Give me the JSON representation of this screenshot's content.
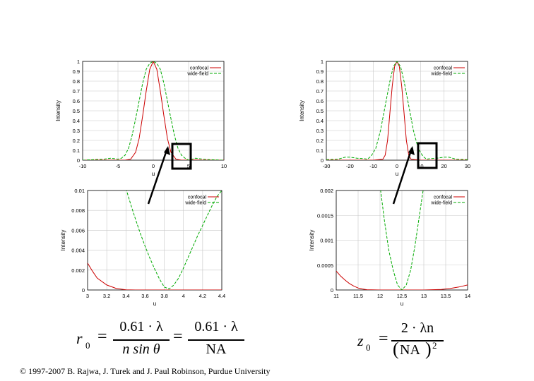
{
  "chart_data": [
    {
      "type": "line",
      "id": "tl",
      "xlabel": "u",
      "ylabel": "Intensity",
      "xlim": [
        -10,
        10
      ],
      "ylim": [
        0,
        1
      ],
      "xticks": [
        "-10",
        "-5",
        "0",
        "5",
        "10"
      ],
      "yticks": [
        "0",
        "0.1",
        "0.2",
        "0.3",
        "0.4",
        "0.5",
        "0.6",
        "0.7",
        "0.8",
        "0.9",
        "1"
      ],
      "grid": true,
      "legend": "top-right",
      "series": [
        {
          "name": "confocal",
          "color": "#cc0000",
          "dash": false,
          "x": [
            -10,
            -4,
            -3.2,
            -2.5,
            -2,
            -1.5,
            -1,
            -0.5,
            0,
            0.5,
            1,
            1.5,
            2,
            2.5,
            3.2,
            4,
            5,
            6,
            7,
            10
          ],
          "y": [
            0,
            0,
            0.01,
            0.08,
            0.22,
            0.45,
            0.7,
            0.92,
            1,
            0.92,
            0.7,
            0.45,
            0.22,
            0.08,
            0.01,
            0,
            0.001,
            0.002,
            0,
            0
          ]
        },
        {
          "name": "wide-field",
          "color": "#00aa00",
          "dash": true,
          "x": [
            -10,
            -7,
            -6,
            -5,
            -4.5,
            -4,
            -3.5,
            -3,
            -2.5,
            -2,
            -1.5,
            -1,
            -0.5,
            0,
            0.5,
            1,
            1.5,
            2,
            2.5,
            3,
            3.5,
            4,
            4.5,
            5,
            6,
            7,
            8,
            10
          ],
          "y": [
            0,
            0.01,
            0.02,
            0.01,
            0.02,
            0.05,
            0.12,
            0.25,
            0.42,
            0.6,
            0.78,
            0.92,
            0.98,
            1,
            0.98,
            0.92,
            0.78,
            0.6,
            0.42,
            0.25,
            0.12,
            0.05,
            0.02,
            0,
            0.02,
            0.01,
            0.005,
            0
          ]
        }
      ]
    },
    {
      "type": "line",
      "id": "tr",
      "xlabel": "u",
      "ylabel": "Intensity",
      "xlim": [
        -30,
        30
      ],
      "ylim": [
        0,
        1
      ],
      "xticks": [
        "-30",
        "-20",
        "-10",
        "0",
        "10",
        "20",
        "30"
      ],
      "yticks": [
        "0",
        "0.1",
        "0.2",
        "0.3",
        "0.4",
        "0.5",
        "0.6",
        "0.7",
        "0.8",
        "0.9",
        "1"
      ],
      "grid": true,
      "legend": "top-right",
      "series": [
        {
          "name": "confocal",
          "color": "#cc0000",
          "dash": false,
          "x": [
            -30,
            -10,
            -6,
            -5,
            -4,
            -3,
            -2,
            -1,
            0,
            1,
            2,
            3,
            4,
            5,
            6,
            10,
            30
          ],
          "y": [
            0,
            0,
            0.01,
            0.05,
            0.2,
            0.48,
            0.75,
            0.95,
            1,
            0.95,
            0.75,
            0.48,
            0.2,
            0.05,
            0.01,
            0,
            0
          ]
        },
        {
          "name": "wide-field",
          "color": "#00aa00",
          "dash": true,
          "x": [
            -30,
            -25,
            -22,
            -20,
            -17,
            -14,
            -12.5,
            -11,
            -9,
            -7,
            -5,
            -3,
            -1.5,
            0,
            1.5,
            3,
            5,
            7,
            9,
            11,
            12.5,
            14,
            17,
            20,
            22,
            25,
            30
          ],
          "y": [
            0.005,
            0.01,
            0.03,
            0.03,
            0.02,
            0.015,
            0.01,
            0.04,
            0.12,
            0.3,
            0.55,
            0.8,
            0.95,
            1,
            0.95,
            0.8,
            0.55,
            0.3,
            0.12,
            0.04,
            0.01,
            0.015,
            0.02,
            0.03,
            0.03,
            0.01,
            0.005
          ]
        }
      ]
    },
    {
      "type": "line",
      "id": "bl",
      "xlabel": "u",
      "ylabel": "Intensity",
      "xlim": [
        3,
        4.4
      ],
      "ylim": [
        0,
        0.01
      ],
      "xticks": [
        "3",
        "3.2",
        "3.4",
        "3.6",
        "3.8",
        "4",
        "4.2",
        "4.4"
      ],
      "yticks": [
        "0",
        "0.002",
        "0.004",
        "0.006",
        "0.008",
        "0.01"
      ],
      "grid": true,
      "legend": "top-right",
      "series": [
        {
          "name": "confocal",
          "color": "#cc0000",
          "dash": false,
          "x": [
            3,
            3.05,
            3.1,
            3.2,
            3.3,
            3.4,
            3.5,
            3.6,
            3.7,
            3.8,
            3.9,
            4,
            4.1,
            4.2,
            4.3,
            4.4
          ],
          "y": [
            0.0027,
            0.0019,
            0.0012,
            0.0005,
            0.00015,
            2e-05,
            0,
            0,
            0,
            0,
            0,
            0,
            0,
            0,
            0,
            0
          ]
        },
        {
          "name": "wide-field",
          "color": "#00aa00",
          "dash": true,
          "x": [
            3.4,
            3.45,
            3.5,
            3.55,
            3.6,
            3.65,
            3.7,
            3.75,
            3.8,
            3.85,
            3.9,
            3.95,
            4,
            4.05,
            4.1,
            4.15,
            4.2,
            4.25,
            4.3,
            4.35,
            4.4
          ],
          "y": [
            0.0102,
            0.0086,
            0.0071,
            0.0057,
            0.0044,
            0.0032,
            0.0021,
            0.0011,
            0.0003,
            0.0001,
            0.0005,
            0.0012,
            0.0022,
            0.0033,
            0.0044,
            0.0055,
            0.0065,
            0.0075,
            0.0085,
            0.0094,
            0.01
          ]
        }
      ]
    },
    {
      "type": "line",
      "id": "br",
      "xlabel": "u",
      "ylabel": "Intensity",
      "xlim": [
        11,
        14
      ],
      "ylim": [
        0,
        0.002
      ],
      "xticks": [
        "11",
        "11.5",
        "12",
        "12.5",
        "13",
        "13.5",
        "14"
      ],
      "yticks": [
        "0",
        "0.0005",
        "0.001",
        "0.0015",
        "0.002"
      ],
      "grid": true,
      "legend": "top-right",
      "series": [
        {
          "name": "confocal",
          "color": "#cc0000",
          "dash": false,
          "x": [
            11,
            11.1,
            11.2,
            11.3,
            11.4,
            11.5,
            11.6,
            11.7,
            12,
            12.5,
            13,
            13.2,
            13.4,
            13.6,
            13.8,
            14
          ],
          "y": [
            0.00038,
            0.00028,
            0.0002,
            0.00013,
            8e-05,
            4e-05,
            2e-05,
            5e-06,
            0,
            0,
            0,
            5e-06,
            1e-05,
            3e-05,
            6e-05,
            0.0001
          ]
        },
        {
          "name": "wide-field",
          "color": "#00aa00",
          "dash": true,
          "x": [
            12,
            12.1,
            12.2,
            12.3,
            12.4,
            12.5,
            12.6,
            12.7,
            12.8,
            12.9,
            13
          ],
          "y": [
            0.0021,
            0.0014,
            0.0008,
            0.0004,
            0.0001,
            0,
            0.0001,
            0.0004,
            0.0009,
            0.0015,
            0.0021
          ]
        }
      ]
    }
  ],
  "formulas": {
    "left": {
      "lhs": "r",
      "lhs_sub": "0",
      "num1": "0.61 · λ",
      "den1": "n sin θ",
      "num2": "0.61 · λ",
      "den2": "NA"
    },
    "right": {
      "lhs": "z",
      "lhs_sub": "0",
      "num": "2 · λn",
      "den": "NA",
      "den_sup": "2"
    }
  },
  "footer": {
    "copyright": "© 1997-2007 B. Rajwa, J. Turek and J. Paul Robinson, Purdue University"
  }
}
